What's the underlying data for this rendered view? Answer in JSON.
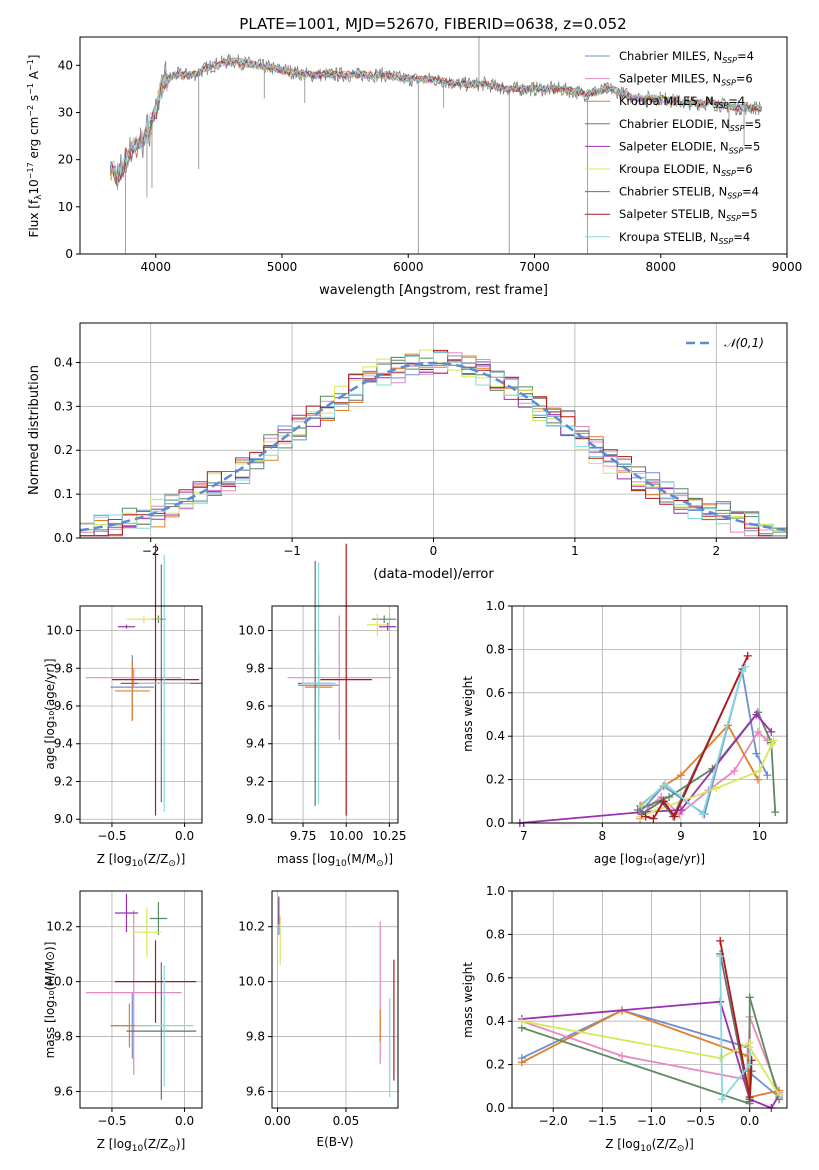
{
  "figure_title": "PLATE=1001, MJD=52670, FIBERID=0638, z=0.052",
  "colors": [
    "#6b8fd4",
    "#e888c0",
    "#e0802a",
    "#5a8a5e",
    "#9b30b0",
    "#d6e85a",
    "#6e6e6e",
    "#b01818",
    "#88d8e0"
  ],
  "legend_entries": [
    {
      "name": "Chabrier MILES",
      "nssp": "4"
    },
    {
      "name": "Salpeter MILES",
      "nssp": "6"
    },
    {
      "name": "Kroupa MILES",
      "nssp": "4"
    },
    {
      "name": "Chabrier ELODIE",
      "nssp": "5"
    },
    {
      "name": "Salpeter ELODIE",
      "nssp": "5"
    },
    {
      "name": "Kroupa ELODIE",
      "nssp": "6"
    },
    {
      "name": "Chabrier STELIB",
      "nssp": "4"
    },
    {
      "name": "Salpeter STELIB",
      "nssp": "5"
    },
    {
      "name": "Kroupa STELIB",
      "nssp": "4"
    }
  ],
  "chart_data": [
    {
      "id": "spectrum",
      "type": "line",
      "xlabel": "wavelength [Angstrom, rest frame]",
      "ylabel_parts": {
        "main": "Flux [f",
        "sub": "λ",
        "mid": "10",
        "sup1": "−17",
        "rest": " erg cm",
        "sup2": "−2",
        "rest2": " s",
        "sup3": "−1",
        "rest3": " A",
        "sup4": "−1",
        "end": "]"
      },
      "xlim": [
        3400,
        9000
      ],
      "ylim": [
        0,
        46
      ],
      "xticks": [
        4000,
        5000,
        6000,
        7000,
        8000,
        9000
      ],
      "yticks": [
        0,
        10,
        20,
        30,
        40
      ],
      "legend_position": "upper-right",
      "legend_sub": "SSP",
      "continuum": [
        [
          3650,
          18
        ],
        [
          3700,
          16
        ],
        [
          3800,
          22
        ],
        [
          3900,
          24
        ],
        [
          4000,
          30
        ],
        [
          4050,
          36
        ],
        [
          4150,
          38
        ],
        [
          4300,
          38
        ],
        [
          4450,
          40
        ],
        [
          4600,
          41
        ],
        [
          4800,
          40
        ],
        [
          5000,
          39
        ],
        [
          5200,
          38
        ],
        [
          5400,
          38
        ],
        [
          5600,
          38
        ],
        [
          5800,
          38
        ],
        [
          6000,
          37
        ],
        [
          6200,
          37
        ],
        [
          6400,
          36
        ],
        [
          6600,
          36
        ],
        [
          6800,
          35
        ],
        [
          7000,
          35
        ],
        [
          7200,
          35
        ],
        [
          7400,
          34
        ],
        [
          7600,
          35
        ],
        [
          7800,
          33
        ],
        [
          8000,
          33
        ],
        [
          8200,
          32
        ],
        [
          8400,
          32
        ],
        [
          8600,
          31
        ],
        [
          8800,
          31
        ]
      ],
      "features": [
        [
          3760,
          0
        ],
        [
          3930,
          12
        ],
        [
          3970,
          14
        ],
        [
          4340,
          18
        ],
        [
          4860,
          33
        ],
        [
          5180,
          32
        ],
        [
          6080,
          0
        ],
        [
          6280,
          31
        ],
        [
          6560,
          46
        ],
        [
          6800,
          0
        ],
        [
          7420,
          0
        ],
        [
          8540,
          26
        ],
        [
          8660,
          23
        ]
      ]
    },
    {
      "id": "residuals",
      "type": "step",
      "xlabel": "(data-model)/error",
      "ylabel": "Normed distribution",
      "xlim": [
        -2.5,
        2.5
      ],
      "ylim": [
        0,
        0.49
      ],
      "xticks": [
        -2,
        -1,
        0,
        1,
        2
      ],
      "xtick_labels": [
        "−2",
        "−1",
        "0",
        "1",
        "2"
      ],
      "yticks": [
        0.0,
        0.1,
        0.2,
        0.3,
        0.4
      ],
      "ytick_labels": [
        "0.0",
        "0.1",
        "0.2",
        "0.3",
        "0.4"
      ],
      "legend_label": "𝒩(0,1)",
      "legend_position": "upper-right",
      "bin_width": 0.1
    },
    {
      "id": "age_vs_Z",
      "type": "errorbar",
      "xlabel_parts": {
        "pre": "Z [log",
        "sub": "10",
        "post": "(Z/Z",
        "sun": "⊙",
        "end": ")]"
      },
      "ylabel": "age  [log₁₀(age/yr)]",
      "xlim": [
        -0.72,
        0.12
      ],
      "ylim": [
        8.98,
        10.13
      ],
      "xticks": [
        -0.5,
        0.0
      ],
      "xtick_labels": [
        "−0.5",
        "0.0"
      ],
      "yticks": [
        9.0,
        9.2,
        9.4,
        9.6,
        9.8,
        10.0
      ],
      "ytick_labels": [
        "9.0",
        "9.2",
        "9.4",
        "9.6",
        "9.8",
        "10.0"
      ],
      "points": [
        {
          "x": -0.36,
          "xe": 0.15,
          "y": 9.7,
          "ye": 0.17
        },
        {
          "x": -0.35,
          "xe": 0.33,
          "y": 9.75,
          "ye": 0.05
        },
        {
          "x": -0.36,
          "xe": 0.12,
          "y": 9.68,
          "ye": 0.16
        },
        {
          "x": -0.18,
          "xe": 0.05,
          "y": 10.06,
          "ye": 0.02
        },
        {
          "x": -0.4,
          "xe": 0.06,
          "y": 10.02,
          "ye": 0.01
        },
        {
          "x": -0.28,
          "xe": 0.12,
          "y": 10.06,
          "ye": 0.02
        },
        {
          "x": -0.16,
          "xe": 0.28,
          "y": 9.72,
          "ye": 0.63
        },
        {
          "x": -0.2,
          "xe": 0.3,
          "y": 9.74,
          "ye": 0.72
        },
        {
          "x": -0.14,
          "xe": 0.18,
          "y": 9.72,
          "ye": 0.68
        }
      ]
    },
    {
      "id": "age_vs_mass",
      "type": "errorbar",
      "xlabel_parts": {
        "pre": "mass [log",
        "sub": "10",
        "post": "(M/M",
        "sun": "⊙",
        "end": ")]"
      },
      "xlim": [
        9.57,
        10.3
      ],
      "ylim": [
        8.98,
        10.13
      ],
      "xticks": [
        9.75,
        10.0,
        10.25
      ],
      "xtick_labels": [
        "9.75",
        "10.00",
        "10.25"
      ],
      "yticks": [
        9.0,
        9.2,
        9.4,
        9.6,
        9.8,
        10.0
      ],
      "ytick_labels": [
        "9.0",
        "9.2",
        "9.4",
        "9.6",
        "9.8",
        "10.0"
      ],
      "points": [
        {
          "x": 9.84,
          "xe": 0.12,
          "y": 9.71,
          "ye": 0.05
        },
        {
          "x": 9.96,
          "xe": 0.3,
          "y": 9.75,
          "ye": 0.33
        },
        {
          "x": 9.84,
          "xe": 0.08,
          "y": 9.7,
          "ye": 0.18
        },
        {
          "x": 10.22,
          "xe": 0.07,
          "y": 10.06,
          "ye": 0.02
        },
        {
          "x": 10.24,
          "xe": 0.05,
          "y": 10.02,
          "ye": 0.02
        },
        {
          "x": 10.18,
          "xe": 0.06,
          "y": 10.03,
          "ye": 0.06
        },
        {
          "x": 9.82,
          "xe": 0.1,
          "y": 9.72,
          "ye": 0.65
        },
        {
          "x": 10.0,
          "xe": 0.15,
          "y": 9.74,
          "ye": 0.72
        },
        {
          "x": 9.84,
          "xe": 0.1,
          "y": 9.72,
          "ye": 0.64
        }
      ]
    },
    {
      "id": "weight_vs_age",
      "type": "line",
      "xlabel": "age  [log₁₀(age/yr)]",
      "ylabel": "mass weight",
      "xlim": [
        6.85,
        10.35
      ],
      "ylim": [
        0,
        1.0
      ],
      "xticks": [
        7,
        8,
        9,
        10
      ],
      "yticks": [
        0.0,
        0.2,
        0.4,
        0.6,
        0.8,
        1.0
      ],
      "ytick_labels": [
        "0.0",
        "0.2",
        "0.4",
        "0.6",
        "0.8",
        "1.0"
      ],
      "series": [
        {
          "x": [
            8.48,
            8.78,
            9.3,
            9.78,
            9.96,
            10.1
          ],
          "y": [
            0.05,
            0.17,
            0.04,
            0.7,
            0.32,
            0.22
          ]
        },
        {
          "x": [
            8.48,
            8.6,
            8.75,
            8.98,
            9.35,
            9.68,
            9.98,
            10.1
          ],
          "y": [
            0.02,
            0.08,
            0.12,
            0.04,
            0.15,
            0.24,
            0.42,
            0.38
          ]
        },
        {
          "x": [
            8.48,
            8.78,
            9.0,
            9.6,
            9.98
          ],
          "y": [
            0.08,
            0.17,
            0.22,
            0.45,
            0.2
          ]
        },
        {
          "x": [
            8.45,
            8.85,
            9.4,
            9.98,
            10.15,
            10.2
          ],
          "y": [
            0.06,
            0.12,
            0.25,
            0.51,
            0.37,
            0.05
          ]
        },
        {
          "x": [
            6.95,
            8.5,
            9.0,
            9.96,
            10.15
          ],
          "y": [
            0.0,
            0.05,
            0.06,
            0.5,
            0.42
          ]
        },
        {
          "x": [
            8.48,
            8.7,
            9.45,
            10.0,
            10.15,
            10.18
          ],
          "y": [
            0.03,
            0.06,
            0.16,
            0.24,
            0.36,
            0.38
          ]
        },
        {
          "x": [
            8.5,
            8.75,
            8.9,
            9.78
          ],
          "y": [
            0.04,
            0.1,
            0.03,
            0.71
          ]
        },
        {
          "x": [
            8.55,
            8.65,
            8.78,
            8.92,
            9.85
          ],
          "y": [
            0.03,
            0.02,
            0.1,
            0.03,
            0.77
          ]
        },
        {
          "x": [
            8.5,
            8.8,
            9.28,
            9.78,
            9.82
          ],
          "y": [
            0.08,
            0.18,
            0.04,
            0.7,
            0.72
          ]
        }
      ]
    },
    {
      "id": "mass_vs_Z",
      "type": "errorbar",
      "xlabel_parts": {
        "pre": "Z [log",
        "sub": "10",
        "post": "(Z/Z",
        "sun": "⊙",
        "end": ")]"
      },
      "ylabel": "mass [log₁₀(M/M⊙)]",
      "xlim": [
        -0.72,
        0.12
      ],
      "ylim": [
        9.54,
        10.33
      ],
      "xticks": [
        -0.5,
        0.0
      ],
      "xtick_labels": [
        "−0.5",
        "0.0"
      ],
      "yticks": [
        9.6,
        9.8,
        10.0,
        10.2
      ],
      "ytick_labels": [
        "9.6",
        "9.8",
        "10.0",
        "10.2"
      ],
      "points": [
        {
          "x": -0.36,
          "xe": 0.15,
          "y": 9.84,
          "ye": 0.12
        },
        {
          "x": -0.35,
          "xe": 0.33,
          "y": 9.96,
          "ye": 0.3
        },
        {
          "x": -0.38,
          "xe": 0.12,
          "y": 9.84,
          "ye": 0.08
        },
        {
          "x": -0.18,
          "xe": 0.06,
          "y": 10.23,
          "ye": 0.06
        },
        {
          "x": -0.4,
          "xe": 0.08,
          "y": 10.25,
          "ye": 0.07
        },
        {
          "x": -0.26,
          "xe": 0.1,
          "y": 10.18,
          "ye": 0.09
        },
        {
          "x": -0.16,
          "xe": 0.24,
          "y": 9.82,
          "ye": 0.25
        },
        {
          "x": -0.2,
          "xe": 0.28,
          "y": 10.0,
          "ye": 0.15
        },
        {
          "x": -0.14,
          "xe": 0.2,
          "y": 9.84,
          "ye": 0.22
        }
      ]
    },
    {
      "id": "mass_vs_EBV",
      "type": "errorbar",
      "xlabel": "E(B-V)",
      "xlim": [
        -0.004,
        0.088
      ],
      "ylim": [
        9.54,
        10.33
      ],
      "xticks": [
        0.0,
        0.05
      ],
      "xtick_labels": [
        "0.00",
        "0.05"
      ],
      "yticks": [
        9.6,
        9.8,
        10.0,
        10.2
      ],
      "ytick_labels": [
        "9.6",
        "9.8",
        "10.0",
        "10.2"
      ],
      "points": [
        {
          "x": 0.001,
          "y": 10.23,
          "ye": 0.06
        },
        {
          "x": 0.075,
          "y": 9.96,
          "ye": 0.26
        },
        {
          "x": 0.075,
          "y": 9.84,
          "ye": 0.06
        },
        {
          "x": 0.001,
          "y": 10.26,
          "ye": 0.04
        },
        {
          "x": 0.001,
          "y": 10.26,
          "ye": 0.05
        },
        {
          "x": 0.002,
          "y": 10.15,
          "ye": 0.09
        },
        {
          "x": 0.001,
          "y": 10.27,
          "ye": 0.03
        },
        {
          "x": 0.085,
          "y": 9.86,
          "ye": 0.22
        },
        {
          "x": 0.082,
          "y": 9.76,
          "ye": 0.18
        }
      ]
    },
    {
      "id": "weight_vs_Z",
      "type": "line",
      "xlabel_parts": {
        "pre": "Z [log",
        "sub": "10",
        "post": "(Z/Z",
        "sun": "⊙",
        "end": ")]"
      },
      "ylabel": "mass weight",
      "xlim": [
        -2.42,
        0.38
      ],
      "ylim": [
        0,
        1.0
      ],
      "xticks": [
        -2.0,
        -1.5,
        -1.0,
        -0.5,
        0.0
      ],
      "xtick_labels": [
        "−2.0",
        "−1.5",
        "−1.0",
        "−0.5",
        "0.0"
      ],
      "yticks": [
        0.0,
        0.2,
        0.4,
        0.6,
        0.8,
        1.0
      ],
      "ytick_labels": [
        "0.0",
        "0.2",
        "0.4",
        "0.6",
        "0.8",
        "1.0"
      ],
      "series": [
        {
          "x": [
            -2.32,
            -1.3,
            -0.02,
            -0.02,
            0.3
          ],
          "y": [
            0.23,
            0.45,
            0.28,
            0.17,
            0.05
          ]
        },
        {
          "x": [
            -2.32,
            -1.3,
            -0.02,
            0.0,
            0.3
          ],
          "y": [
            0.4,
            0.24,
            0.13,
            0.42,
            0.07
          ]
        },
        {
          "x": [
            -2.32,
            -1.3,
            -0.02,
            0.0,
            0.3
          ],
          "y": [
            0.21,
            0.45,
            0.24,
            0.05,
            0.08
          ]
        },
        {
          "x": [
            -2.32,
            0.0,
            0.0,
            0.3
          ],
          "y": [
            0.37,
            0.02,
            0.51,
            0.04
          ]
        },
        {
          "x": [
            -2.32,
            -0.3,
            0.0,
            0.22,
            0.3
          ],
          "y": [
            0.41,
            0.49,
            0.04,
            0.0,
            0.06
          ]
        },
        {
          "x": [
            -2.32,
            -0.3,
            0.0,
            0.0,
            0.3
          ],
          "y": [
            0.4,
            0.23,
            0.3,
            0.28,
            0.06
          ]
        },
        {
          "x": [
            -0.3,
            0.0,
            0.02
          ],
          "y": [
            0.71,
            0.03,
            0.17
          ]
        },
        {
          "x": [
            -0.3,
            0.0,
            0.02
          ],
          "y": [
            0.77,
            0.05,
            0.22
          ]
        },
        {
          "x": [
            -0.3,
            -0.28,
            0.0,
            0.0
          ],
          "y": [
            0.7,
            0.04,
            0.2,
            0.25
          ]
        }
      ]
    }
  ]
}
